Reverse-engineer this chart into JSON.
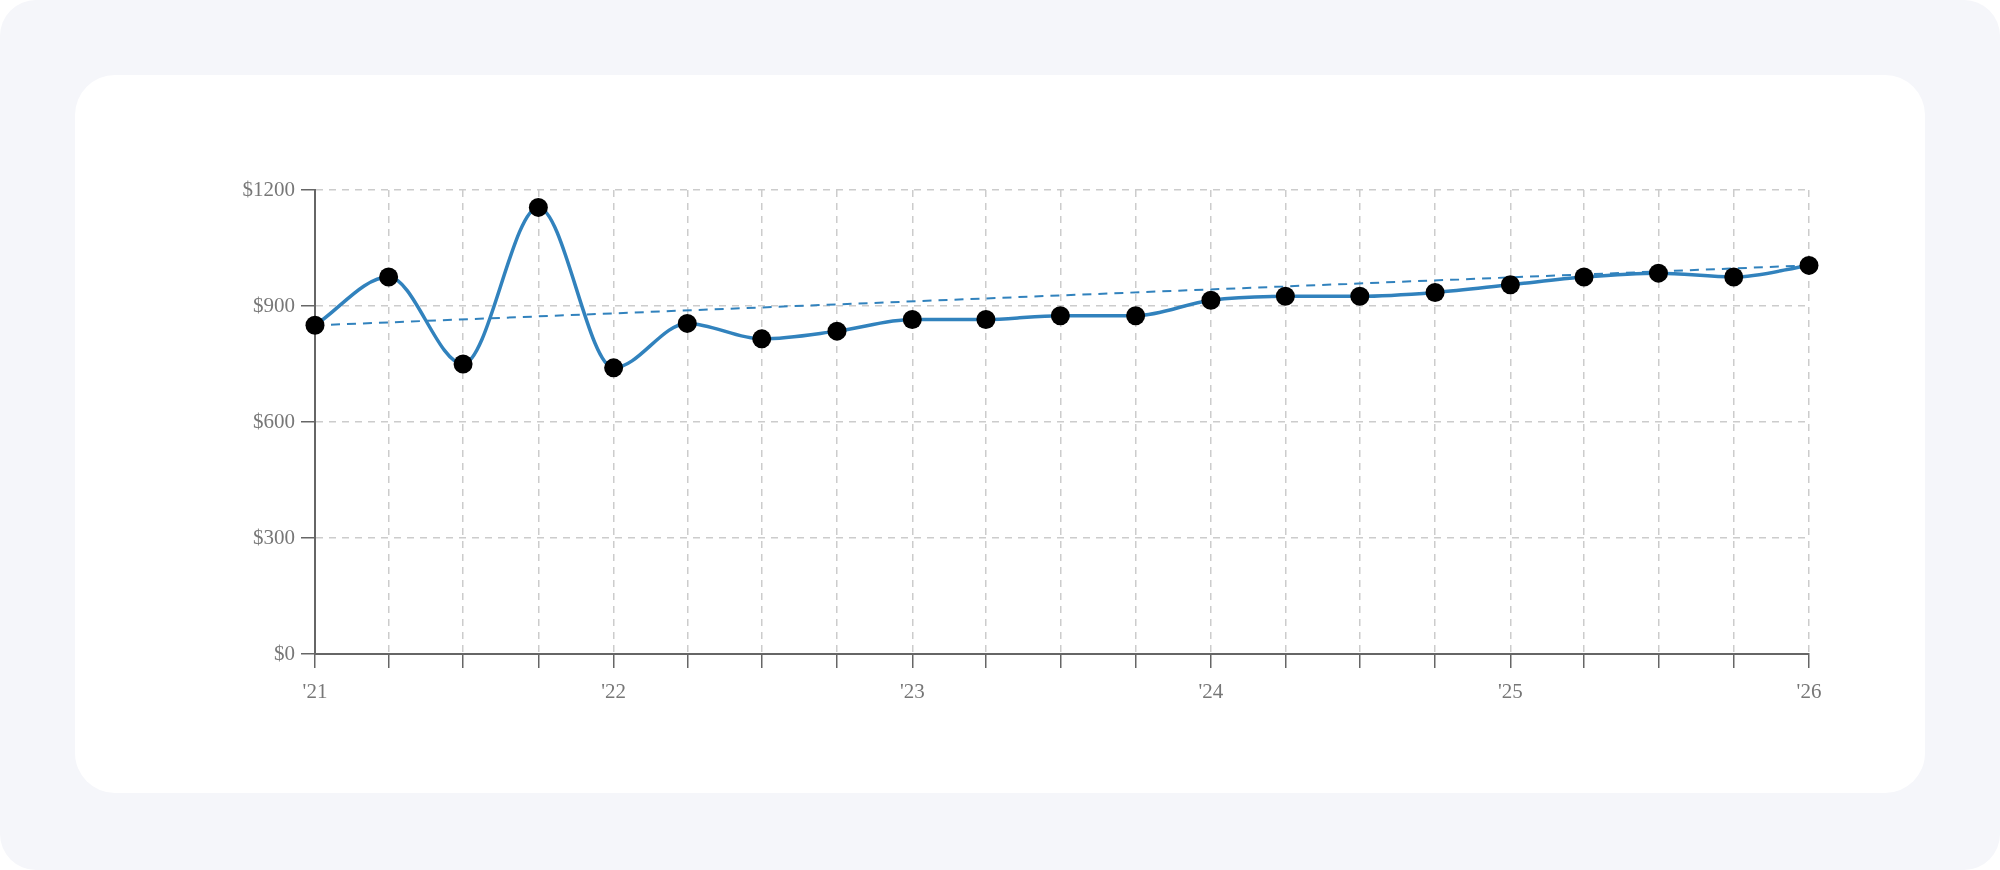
{
  "chart_data": {
    "type": "line",
    "x": [
      "2021-01",
      "2021-04",
      "2021-07",
      "2021-10",
      "2022-01",
      "2022-04",
      "2022-07",
      "2022-10",
      "2023-01",
      "2023-04",
      "2023-07",
      "2023-10",
      "2024-01",
      "2024-04",
      "2024-07",
      "2024-10",
      "2025-01",
      "2025-04",
      "2025-07",
      "2025-10",
      "2026-01"
    ],
    "series": [
      {
        "color": "#3182bd",
        "values": [
          850,
          975,
          750,
          1155,
          740,
          855,
          815,
          835,
          865,
          865,
          875,
          875,
          915,
          925,
          925,
          935,
          955,
          975,
          985,
          975,
          1005
        ]
      },
      {
        "type": "line",
        "x": [
          "2021-01",
          "2026-01"
        ],
        "values": [
          850,
          1005
        ],
        "color": "#3182bd",
        "line_style": "dashed",
        "marker": "none"
      }
    ],
    "marker": "circle",
    "xlim": [
      "2021-01",
      "2026-01"
    ],
    "xticks": [
      {
        "value": "2021-01",
        "label": "'21"
      },
      {
        "value": "2021-04",
        "label": null
      },
      {
        "value": "2021-07",
        "label": null
      },
      {
        "value": "2021-10",
        "label": null
      },
      {
        "value": "2022-01",
        "label": "'22"
      },
      {
        "value": "2022-04",
        "label": null
      },
      {
        "value": "2022-07",
        "label": null
      },
      {
        "value": "2022-10",
        "label": null
      },
      {
        "value": "2023-01",
        "label": "'23"
      },
      {
        "value": "2023-04",
        "label": null
      },
      {
        "value": "2023-07",
        "label": null
      },
      {
        "value": "2023-10",
        "label": null
      },
      {
        "value": "2024-01",
        "label": "'24"
      },
      {
        "value": "2024-04",
        "label": null
      },
      {
        "value": "2024-07",
        "label": null
      },
      {
        "value": "2024-10",
        "label": null
      },
      {
        "value": "2025-01",
        "label": "'25"
      },
      {
        "value": "2025-04",
        "label": null
      },
      {
        "value": "2025-07",
        "label": null
      },
      {
        "value": "2025-10",
        "label": null
      },
      {
        "value": "2026-01",
        "label": "'26"
      }
    ],
    "ylim": [
      0,
      1200
    ],
    "yticks": [
      {
        "value": 0,
        "label": "$0"
      },
      {
        "value": 300,
        "label": "$300"
      },
      {
        "value": 600,
        "label": "$600"
      },
      {
        "value": 900,
        "label": "$900"
      },
      {
        "value": 1200,
        "label": "$1200"
      }
    ],
    "grid": true
  }
}
